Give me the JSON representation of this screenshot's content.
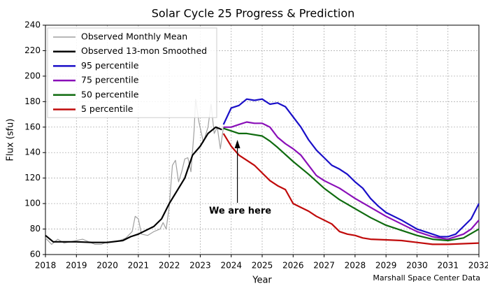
{
  "chart_data": {
    "type": "line",
    "title": "Solar Cycle 25 Progress & Prediction",
    "xlabel": "Year",
    "ylabel": "Flux (sfu)",
    "source": "Marshall Space Center Data",
    "xlim": [
      2018,
      2032
    ],
    "ylim": [
      60,
      240
    ],
    "xticks": [
      2018,
      2019,
      2020,
      2021,
      2022,
      2023,
      2024,
      2025,
      2026,
      2027,
      2028,
      2029,
      2030,
      2031,
      2032
    ],
    "yticks": [
      60,
      80,
      100,
      120,
      140,
      160,
      180,
      200,
      220,
      240
    ],
    "grid": true,
    "legend": "upper left",
    "annotation": {
      "text": "We are here",
      "x": 2024.2,
      "y": 150
    },
    "series": [
      {
        "name": "Observed Monthly Mean",
        "color": "#a0a0a0",
        "x": [
          2018,
          2018.2,
          2018.4,
          2018.6,
          2018.8,
          2019,
          2019.2,
          2019.4,
          2019.6,
          2019.8,
          2020,
          2020.2,
          2020.4,
          2020.6,
          2020.8,
          2020.9,
          2021,
          2021.1,
          2021.3,
          2021.5,
          2021.7,
          2021.8,
          2021.9,
          2022,
          2022.1,
          2022.2,
          2022.3,
          2022.4,
          2022.5,
          2022.6,
          2022.7,
          2022.8,
          2022.85,
          2022.95,
          2023.1,
          2023.25,
          2023.35,
          2023.45,
          2023.55,
          2023.65,
          2023.75
        ],
        "values": [
          73,
          68,
          72,
          69,
          70,
          71,
          72,
          70,
          68,
          68,
          70,
          70,
          71,
          73,
          78,
          90,
          88,
          76,
          75,
          78,
          80,
          85,
          80,
          98,
          130,
          134,
          117,
          125,
          135,
          136,
          125,
          157,
          182,
          165,
          148,
          160,
          178,
          155,
          160,
          143,
          160
        ]
      },
      {
        "name": "Observed 13-mon Smoothed",
        "color": "#000000",
        "x": [
          2018,
          2018.25,
          2018.5,
          2019,
          2019.5,
          2020,
          2020.5,
          2020.75,
          2021,
          2021.5,
          2021.75,
          2022,
          2022.25,
          2022.5,
          2022.75,
          2023,
          2023.25,
          2023.5,
          2023.7
        ],
        "values": [
          75,
          70,
          70,
          70,
          69.5,
          69.5,
          71,
          74,
          76,
          82,
          88,
          100,
          110,
          120,
          138,
          145,
          155,
          160,
          158
        ]
      },
      {
        "name": "95 percentile",
        "color": "#1a0fc8",
        "x": [
          2023.75,
          2024,
          2024.25,
          2024.5,
          2024.75,
          2025,
          2025.25,
          2025.5,
          2025.75,
          2026,
          2026.25,
          2026.5,
          2026.75,
          2027,
          2027.25,
          2027.5,
          2027.75,
          2028,
          2028.25,
          2028.5,
          2028.75,
          2029,
          2029.5,
          2030,
          2030.25,
          2030.5,
          2030.75,
          2031,
          2031.25,
          2031.5,
          2031.75,
          2032
        ],
        "values": [
          162,
          175,
          177,
          182,
          181,
          182,
          178,
          179,
          176,
          168,
          160,
          150,
          142,
          136,
          130,
          127,
          123,
          117,
          112,
          104,
          98,
          93,
          87,
          80,
          78,
          76,
          74,
          74,
          76,
          82,
          88,
          100
        ]
      },
      {
        "name": "75 percentile",
        "color": "#8a0fb8",
        "x": [
          2023.75,
          2024,
          2024.25,
          2024.5,
          2024.75,
          2025,
          2025.25,
          2025.5,
          2025.75,
          2026,
          2026.25,
          2026.5,
          2026.75,
          2027,
          2027.5,
          2027.75,
          2028,
          2028.5,
          2029,
          2029.5,
          2030,
          2030.5,
          2031,
          2031.5,
          2031.75,
          2032
        ],
        "values": [
          160,
          160,
          162,
          164,
          163,
          163,
          160,
          152,
          147,
          143,
          138,
          130,
          122,
          118,
          112,
          108,
          104,
          97,
          90,
          84,
          78,
          74,
          72,
          76,
          80,
          87
        ]
      },
      {
        "name": "50 percentile",
        "color": "#0f6b0f",
        "x": [
          2023.75,
          2024,
          2024.25,
          2024.5,
          2025,
          2025.25,
          2025.5,
          2026,
          2026.5,
          2027,
          2027.5,
          2028,
          2028.5,
          2029,
          2029.5,
          2030,
          2030.5,
          2031,
          2031.5,
          2032
        ],
        "values": [
          159,
          157,
          155,
          155,
          153,
          149,
          144,
          133,
          123,
          112,
          103,
          96,
          89,
          83,
          79,
          75,
          72,
          71,
          73,
          80
        ]
      },
      {
        "name": "5 percentile",
        "color": "#c00a0a",
        "x": [
          2023.75,
          2024,
          2024.25,
          2024.5,
          2024.75,
          2025,
          2025.25,
          2025.5,
          2025.75,
          2026,
          2026.25,
          2026.5,
          2026.75,
          2027,
          2027.25,
          2027.5,
          2027.75,
          2028,
          2028.25,
          2028.5,
          2029,
          2029.5,
          2030,
          2030.5,
          2031,
          2031.5,
          2032
        ],
        "values": [
          155,
          145,
          138,
          134,
          130,
          124,
          118,
          114,
          111,
          100,
          97,
          94,
          90,
          87,
          84,
          78,
          76,
          75,
          73,
          72,
          71.5,
          71,
          69.5,
          68,
          68,
          68.5,
          69
        ]
      }
    ]
  }
}
